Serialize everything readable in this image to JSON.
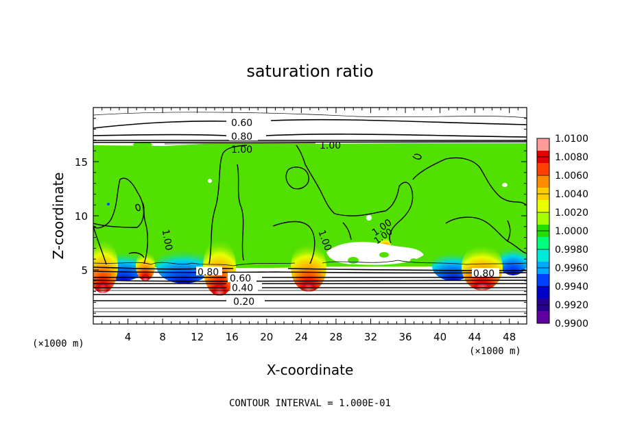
{
  "chart_data": {
    "type": "heatmap",
    "title": "saturation ratio",
    "xlabel": "X-coordinate",
    "ylabel": "Z-coordinate",
    "x_unit": "(×1000 m)",
    "z_unit": "(×1000 m)",
    "xlim": [
      0,
      50
    ],
    "ylim": [
      0,
      20
    ],
    "x_ticks": [
      "4",
      "8",
      "12",
      "16",
      "20",
      "24",
      "28",
      "32",
      "36",
      "40",
      "44",
      "48"
    ],
    "y_ticks": [
      "5",
      "10",
      "15"
    ],
    "colorbar": {
      "levels": [
        "1.0100",
        "1.0080",
        "1.0060",
        "1.0040",
        "1.0020",
        "1.0000",
        "0.9980",
        "0.9960",
        "0.9940",
        "0.9920",
        "0.9900"
      ],
      "colors": [
        "#ff9a9a",
        "#e00000",
        "#ff4000",
        "#ff8c00",
        "#ffd000",
        "#e8ff00",
        "#a8ff00",
        "#24e000",
        "#00ff80",
        "#00e8d8",
        "#00a8ff",
        "#0040ff",
        "#0000c8",
        "#280090",
        "#6000a0"
      ]
    },
    "contour_labels": [
      "0.60",
      "0.80",
      "1.00",
      "1.00",
      "1.00",
      "1.00",
      "1.00",
      "1.00",
      "0.80",
      "0.60",
      "0.40",
      "0.20",
      "0.80"
    ],
    "contour_interval": "CONTOUR INTERVAL = 1.000E-01"
  }
}
